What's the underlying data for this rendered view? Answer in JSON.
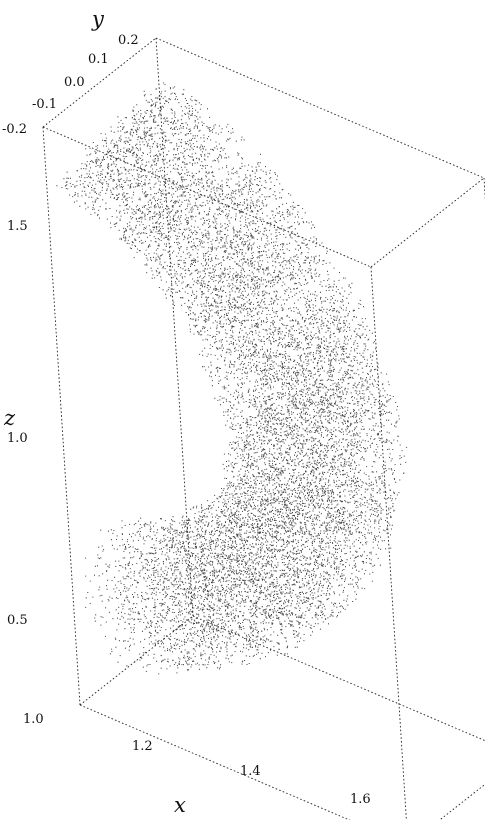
{
  "chart_data": {
    "type": "scatter",
    "projection": "3d",
    "title": "",
    "xlabel": "x",
    "ylabel": "y",
    "zlabel": "z",
    "xlim": [
      1.0,
      1.7
    ],
    "ylim": [
      -0.2,
      0.2
    ],
    "zlim": [
      0.3,
      1.8
    ],
    "xticks": [
      "1.0",
      "1.2",
      "1.4",
      "1.6"
    ],
    "yticks": [
      "-0.2",
      "-0.1",
      "0.0",
      "0.1",
      "0.2"
    ],
    "zticks": [
      "0.5",
      "1.0",
      "1.5"
    ],
    "box": true,
    "grid": false,
    "marker_color": "#111111",
    "point_cloud": {
      "shape": "curved tube (bean / kidney shaped)",
      "approx_points": 60000,
      "centerline_xz": [
        [
          1.02,
          1.68
        ],
        [
          1.18,
          1.6
        ],
        [
          1.34,
          1.42
        ],
        [
          1.43,
          1.1
        ],
        [
          1.38,
          0.82
        ],
        [
          1.2,
          0.58
        ],
        [
          1.02,
          0.48
        ]
      ],
      "tube_radius": 0.16
    }
  }
}
